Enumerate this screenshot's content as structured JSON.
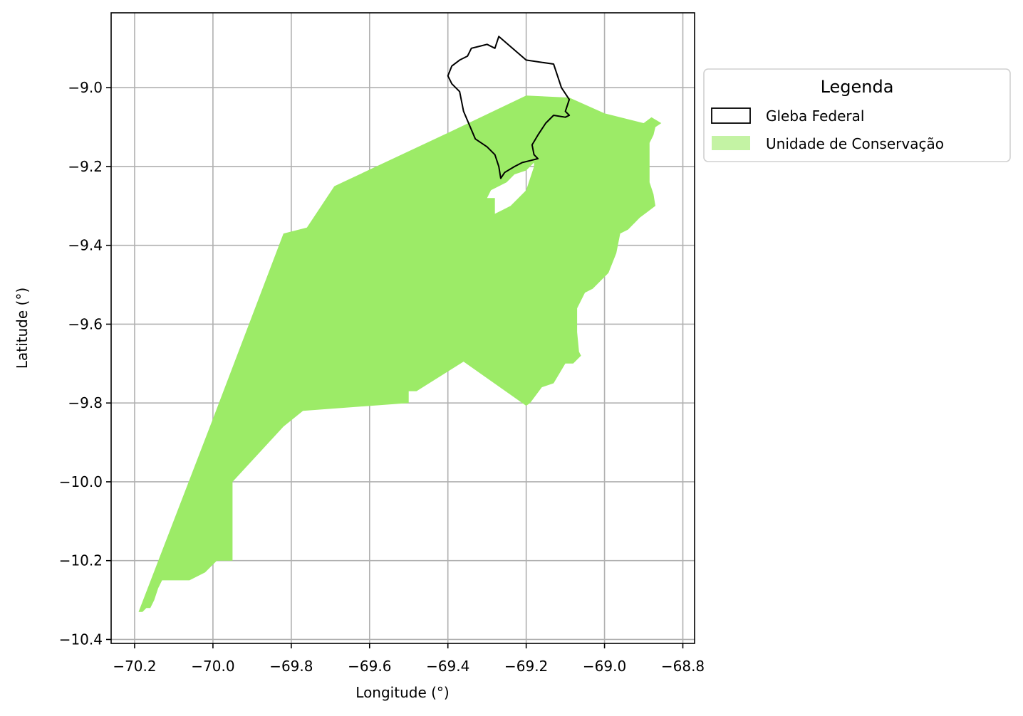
{
  "map": {
    "xlabel": "Longitude (°)",
    "ylabel": "Latitude (°)",
    "xlim": [
      -70.26,
      -68.77
    ],
    "ylim": [
      -10.41,
      -8.81
    ],
    "grid": true,
    "x_ticks": [
      -70.2,
      -70.0,
      -69.8,
      -69.6,
      -69.4,
      -69.2,
      -69.0,
      -68.8
    ],
    "x_tick_labels": [
      "−70.2",
      "−70.0",
      "−69.8",
      "−69.6",
      "−69.4",
      "−69.2",
      "−69.0",
      "−68.8"
    ],
    "y_ticks": [
      -9.0,
      -9.2,
      -9.4,
      -9.6,
      -9.8,
      -10.0,
      -10.2,
      -10.4
    ],
    "y_tick_labels": [
      "−9.0",
      "−9.2",
      "−9.4",
      "−9.6",
      "−9.8",
      "−10.0",
      "−10.2",
      "−10.4"
    ],
    "colors": {
      "conservation_fill": "#9ceb67",
      "gleba_stroke": "#000000",
      "grid": "#b0b0b0"
    }
  },
  "legend": {
    "title": "Legenda",
    "placement": "outside-right-top",
    "items": [
      {
        "label": "Gleba Federal",
        "style": "outline"
      },
      {
        "label": "Unidade de Conservação",
        "style": "fill"
      }
    ]
  },
  "chart_data": {
    "type": "map",
    "xlabel": "Longitude (°)",
    "ylabel": "Latitude (°)",
    "xlim": [
      -70.26,
      -68.77
    ],
    "ylim": [
      -10.41,
      -8.81
    ],
    "grid": true,
    "legend_title": "Legenda",
    "layers": [
      {
        "name": "Unidade de Conservação",
        "kind": "polygon-fill",
        "color": "#9ceb67",
        "coordinates": [
          [
            -70.19,
            -10.33
          ],
          [
            -70.0,
            -9.84
          ],
          [
            -69.82,
            -9.37
          ],
          [
            -69.76,
            -9.355
          ],
          [
            -69.69,
            -9.25
          ],
          [
            -69.39,
            -9.11
          ],
          [
            -69.2,
            -9.02
          ],
          [
            -69.09,
            -9.025
          ],
          [
            -69.0,
            -9.065
          ],
          [
            -68.9,
            -9.09
          ],
          [
            -68.88,
            -9.075
          ],
          [
            -68.855,
            -9.09
          ],
          [
            -68.87,
            -9.1
          ],
          [
            -68.875,
            -9.12
          ],
          [
            -68.885,
            -9.14
          ],
          [
            -68.885,
            -9.2
          ],
          [
            -68.885,
            -9.24
          ],
          [
            -68.875,
            -9.27
          ],
          [
            -68.87,
            -9.3
          ],
          [
            -68.89,
            -9.315
          ],
          [
            -68.91,
            -9.33
          ],
          [
            -68.94,
            -9.36
          ],
          [
            -68.96,
            -9.37
          ],
          [
            -68.97,
            -9.42
          ],
          [
            -68.99,
            -9.47
          ],
          [
            -69.03,
            -9.51
          ],
          [
            -69.05,
            -9.52
          ],
          [
            -69.07,
            -9.56
          ],
          [
            -69.07,
            -9.62
          ],
          [
            -69.065,
            -9.67
          ],
          [
            -69.06,
            -9.68
          ],
          [
            -69.08,
            -9.7
          ],
          [
            -69.1,
            -9.7
          ],
          [
            -69.13,
            -9.75
          ],
          [
            -69.16,
            -9.76
          ],
          [
            -69.19,
            -9.8
          ],
          [
            -69.2,
            -9.807
          ],
          [
            -69.36,
            -9.695
          ],
          [
            -69.48,
            -9.77
          ],
          [
            -69.5,
            -9.77
          ],
          [
            -69.5,
            -9.8
          ],
          [
            -69.77,
            -9.82
          ],
          [
            -69.82,
            -9.86
          ],
          [
            -69.95,
            -10.0
          ],
          [
            -69.95,
            -10.2
          ],
          [
            -69.99,
            -10.2
          ],
          [
            -70.02,
            -10.23
          ],
          [
            -70.06,
            -10.25
          ],
          [
            -70.1,
            -10.25
          ],
          [
            -70.13,
            -10.25
          ],
          [
            -70.14,
            -10.27
          ],
          [
            -70.15,
            -10.3
          ],
          [
            -70.16,
            -10.32
          ],
          [
            -70.17,
            -10.32
          ],
          [
            -70.18,
            -10.33
          ],
          [
            -70.19,
            -10.33
          ]
        ],
        "hole": [
          [
            -69.18,
            -9.19
          ],
          [
            -69.2,
            -9.21
          ],
          [
            -69.23,
            -9.22
          ],
          [
            -69.25,
            -9.24
          ],
          [
            -69.29,
            -9.26
          ],
          [
            -69.3,
            -9.28
          ],
          [
            -69.28,
            -9.28
          ],
          [
            -69.28,
            -9.32
          ],
          [
            -69.26,
            -9.31
          ],
          [
            -69.24,
            -9.3
          ],
          [
            -69.22,
            -9.28
          ],
          [
            -69.2,
            -9.26
          ],
          [
            -69.19,
            -9.23
          ],
          [
            -69.18,
            -9.2
          ],
          [
            -69.18,
            -9.19
          ]
        ]
      },
      {
        "name": "Gleba Federal",
        "kind": "polygon-outline",
        "color": "#000000",
        "coordinates": [
          [
            -69.27,
            -8.87
          ],
          [
            -69.2,
            -8.93
          ],
          [
            -69.13,
            -8.94
          ],
          [
            -69.12,
            -8.97
          ],
          [
            -69.11,
            -9.0
          ],
          [
            -69.09,
            -9.03
          ],
          [
            -69.1,
            -9.06
          ],
          [
            -69.09,
            -9.07
          ],
          [
            -69.1,
            -9.075
          ],
          [
            -69.13,
            -9.07
          ],
          [
            -69.15,
            -9.09
          ],
          [
            -69.17,
            -9.12
          ],
          [
            -69.185,
            -9.145
          ],
          [
            -69.18,
            -9.17
          ],
          [
            -69.17,
            -9.18
          ],
          [
            -69.19,
            -9.185
          ],
          [
            -69.21,
            -9.19
          ],
          [
            -69.23,
            -9.2
          ],
          [
            -69.255,
            -9.215
          ],
          [
            -69.265,
            -9.23
          ],
          [
            -69.27,
            -9.2
          ],
          [
            -69.28,
            -9.17
          ],
          [
            -69.3,
            -9.15
          ],
          [
            -69.33,
            -9.13
          ],
          [
            -69.36,
            -9.06
          ],
          [
            -69.37,
            -9.01
          ],
          [
            -69.39,
            -8.99
          ],
          [
            -69.4,
            -8.97
          ],
          [
            -69.39,
            -8.945
          ],
          [
            -69.37,
            -8.93
          ],
          [
            -69.35,
            -8.92
          ],
          [
            -69.34,
            -8.9
          ],
          [
            -69.32,
            -8.895
          ],
          [
            -69.3,
            -8.89
          ],
          [
            -69.28,
            -8.9
          ],
          [
            -69.27,
            -8.87
          ]
        ]
      }
    ]
  }
}
